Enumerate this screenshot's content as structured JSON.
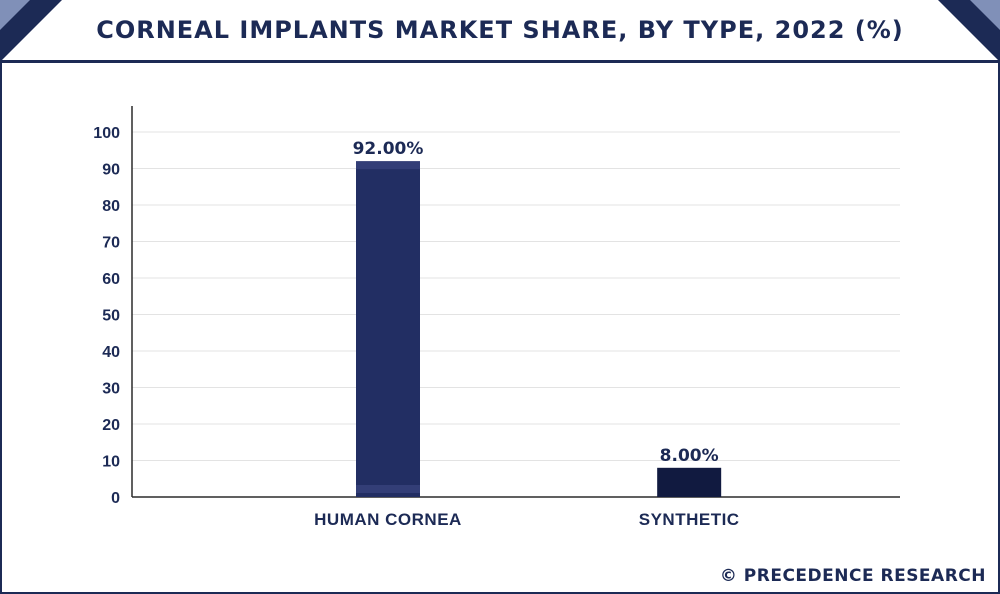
{
  "title": "CORNEAL IMPLANTS MARKET SHARE, BY TYPE, 2022 (%)",
  "credit": "© PRECEDENCE RESEARCH",
  "colors": {
    "accent": "#1c2a55",
    "bar_human_cornea": "#222e63",
    "bar_synthetic": "#111a40",
    "grid": "#e3e3e3"
  },
  "chart_data": {
    "type": "bar",
    "title": "CORNEAL IMPLANTS MARKET SHARE, BY TYPE, 2022 (%)",
    "categories": [
      "HUMAN CORNEA",
      "SYNTHETIC"
    ],
    "values": [
      92,
      8
    ],
    "data_labels": [
      "92.00%",
      "8.00%"
    ],
    "xlabel": "",
    "ylabel": "",
    "ylim": [
      0,
      100
    ],
    "yticks": [
      0,
      10,
      20,
      30,
      40,
      50,
      60,
      70,
      80,
      90,
      100
    ],
    "grid": true,
    "legend": "none"
  }
}
